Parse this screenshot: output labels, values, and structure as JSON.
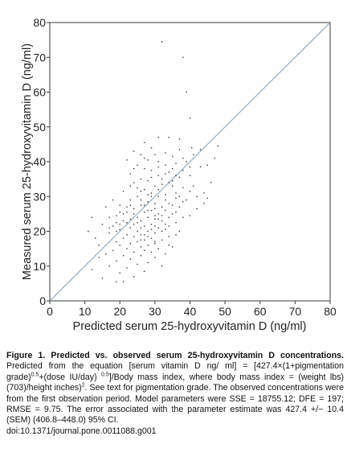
{
  "chart_data": {
    "type": "scatter",
    "title": "",
    "xlabel": "Predicted serum 25-hydroxyvitamin D (ng/ml)",
    "ylabel": "Measured serum 25-hydroxyvitamin D (ng/ml)",
    "xlim": [
      0,
      80
    ],
    "ylim": [
      0,
      80
    ],
    "xticks": [
      "0",
      "10",
      "20",
      "30",
      "40",
      "50",
      "60",
      "70",
      "80"
    ],
    "yticks": [
      "0",
      "10",
      "20",
      "30",
      "40",
      "50",
      "60",
      "70",
      "80"
    ],
    "grid": false,
    "legend": "none",
    "reference_line": {
      "type": "identity",
      "from": [
        0,
        0
      ],
      "to": [
        80,
        80
      ]
    },
    "point_color": "#333333",
    "line_color": "#7a9cc6",
    "points": [
      [
        32,
        74.5
      ],
      [
        39,
        60
      ],
      [
        38,
        70
      ],
      [
        40,
        52.5
      ],
      [
        34,
        47
      ],
      [
        31,
        47
      ],
      [
        37,
        46.5
      ],
      [
        27,
        45.5
      ],
      [
        40.5,
        44
      ],
      [
        29,
        44
      ],
      [
        43,
        43.5
      ],
      [
        37,
        43.5
      ],
      [
        24,
        43
      ],
      [
        33,
        42.5
      ],
      [
        26,
        42
      ],
      [
        30,
        42
      ],
      [
        35,
        41.5
      ],
      [
        38,
        41
      ],
      [
        22,
        40.5
      ],
      [
        28,
        40.5
      ],
      [
        31,
        40
      ],
      [
        36,
        39.5
      ],
      [
        25,
        39
      ],
      [
        33,
        39
      ],
      [
        40,
        38.5
      ],
      [
        27,
        38
      ],
      [
        29,
        37.5
      ],
      [
        34,
        37
      ],
      [
        23,
        36.5
      ],
      [
        31,
        36
      ],
      [
        37,
        35.5
      ],
      [
        26,
        35
      ],
      [
        28,
        34.5
      ],
      [
        24,
        34
      ],
      [
        32,
        33.5
      ],
      [
        30,
        33
      ],
      [
        35,
        33
      ],
      [
        38,
        32.5
      ],
      [
        27,
        32
      ],
      [
        21,
        31.5
      ],
      [
        29,
        31
      ],
      [
        33,
        30.5
      ],
      [
        25,
        30
      ],
      [
        31,
        30
      ],
      [
        36,
        29.5
      ],
      [
        39,
        29
      ],
      [
        23,
        29
      ],
      [
        28,
        28.5
      ],
      [
        30,
        28
      ],
      [
        34,
        28
      ],
      [
        20,
        27.5
      ],
      [
        26,
        27.5
      ],
      [
        32,
        27
      ],
      [
        37,
        27
      ],
      [
        24,
        26.5
      ],
      [
        29,
        26
      ],
      [
        33,
        26
      ],
      [
        22,
        25.5
      ],
      [
        27,
        25.5
      ],
      [
        31,
        25
      ],
      [
        35,
        25
      ],
      [
        40,
        24.5
      ],
      [
        19,
        24.5
      ],
      [
        25,
        24
      ],
      [
        28,
        24
      ],
      [
        30,
        23.5
      ],
      [
        21,
        23
      ],
      [
        26,
        23
      ],
      [
        32,
        23
      ],
      [
        36,
        22.5
      ],
      [
        24,
        22
      ],
      [
        29,
        22
      ],
      [
        18,
        21.5
      ],
      [
        27,
        21.5
      ],
      [
        31,
        21
      ],
      [
        23,
        21
      ],
      [
        33,
        20.5
      ],
      [
        20,
        20.5
      ],
      [
        25,
        20
      ],
      [
        28,
        20
      ],
      [
        30,
        19.5
      ],
      [
        17,
        19.5
      ],
      [
        22,
        19
      ],
      [
        26,
        19
      ],
      [
        34,
        18.5
      ],
      [
        24,
        18.5
      ],
      [
        29,
        18
      ],
      [
        21,
        18
      ],
      [
        27,
        17.5
      ],
      [
        32,
        17.5
      ],
      [
        19,
        17
      ],
      [
        25,
        17
      ],
      [
        30,
        16.5
      ],
      [
        23,
        16.5
      ],
      [
        28,
        16
      ],
      [
        20,
        16
      ],
      [
        35,
        15.5
      ],
      [
        26,
        15.5
      ],
      [
        22,
        15
      ],
      [
        31,
        15
      ],
      [
        18,
        14.5
      ],
      [
        27,
        14.5
      ],
      [
        24,
        14
      ],
      [
        29,
        14
      ],
      [
        33,
        13.5
      ],
      [
        16,
        13.5
      ],
      [
        21,
        13
      ],
      [
        26,
        13
      ],
      [
        14,
        12.5
      ],
      [
        30,
        12.5
      ],
      [
        23,
        12
      ],
      [
        19,
        11.5
      ],
      [
        28,
        11
      ],
      [
        25,
        10.5
      ],
      [
        17,
        10
      ],
      [
        32,
        10
      ],
      [
        22,
        9.5
      ],
      [
        12,
        9
      ],
      [
        27,
        8.5
      ],
      [
        20,
        8
      ],
      [
        24,
        7
      ],
      [
        15,
        6.5
      ],
      [
        21,
        5.5
      ],
      [
        19,
        5.5
      ],
      [
        13,
        18
      ],
      [
        15,
        22
      ],
      [
        12,
        24
      ],
      [
        16,
        27
      ],
      [
        11,
        20
      ],
      [
        14,
        16
      ],
      [
        17,
        24
      ],
      [
        18,
        29
      ],
      [
        36,
        36
      ],
      [
        38,
        24
      ],
      [
        41,
        33
      ],
      [
        42,
        30
      ],
      [
        44,
        31
      ],
      [
        45,
        29.5
      ],
      [
        34,
        34
      ],
      [
        33,
        29
      ],
      [
        36,
        19
      ],
      [
        31,
        32
      ],
      [
        29,
        30
      ],
      [
        27,
        27.5
      ],
      [
        26,
        29
      ],
      [
        30,
        26.5
      ],
      [
        28,
        30.5
      ],
      [
        32,
        35
      ],
      [
        35,
        38
      ],
      [
        23,
        33
      ],
      [
        22,
        27
      ],
      [
        21,
        25
      ],
      [
        20,
        22
      ],
      [
        19,
        20
      ],
      [
        24,
        25
      ],
      [
        23,
        23.5
      ],
      [
        25,
        22.5
      ],
      [
        26,
        21
      ],
      [
        27,
        19
      ],
      [
        28,
        18.5
      ],
      [
        29,
        20.5
      ],
      [
        30,
        21.5
      ],
      [
        31,
        23.5
      ],
      [
        32,
        24.5
      ],
      [
        33,
        22
      ],
      [
        34,
        24
      ],
      [
        35,
        27.5
      ],
      [
        36,
        31
      ],
      [
        37,
        30
      ],
      [
        38,
        37.5
      ],
      [
        39,
        40
      ],
      [
        40,
        36
      ],
      [
        41,
        42
      ],
      [
        42,
        26.5
      ],
      [
        43,
        38.5
      ],
      [
        44,
        28
      ],
      [
        45,
        39
      ],
      [
        46,
        34
      ],
      [
        47,
        41
      ],
      [
        48,
        44.5
      ],
      [
        37,
        20
      ],
      [
        34,
        16
      ],
      [
        30,
        17
      ],
      [
        26,
        17.5
      ],
      [
        22,
        22.5
      ],
      [
        20,
        25.5
      ],
      [
        24,
        38
      ],
      [
        27,
        41
      ],
      [
        29,
        35.5
      ],
      [
        31,
        38.5
      ],
      [
        33,
        36.5
      ],
      [
        35,
        34.5
      ],
      [
        25,
        32.5
      ],
      [
        28,
        26
      ],
      [
        30,
        24.5
      ],
      [
        32,
        20
      ],
      [
        34,
        21.5
      ],
      [
        36,
        25.5
      ],
      [
        38,
        28.5
      ],
      [
        40,
        31.5
      ],
      [
        19,
        22.5
      ],
      [
        17,
        21
      ],
      [
        23,
        27.5
      ],
      [
        26,
        31.5
      ]
    ]
  },
  "caption": {
    "title": "Figure 1. Predicted vs. observed serum 25-hydroxyvitamin D concentrations.",
    "part1": " Predicted from the equation [serum vitamin D ng/ ml] = [427.4×(1+pigmentation grade)",
    "sup1": "0.5",
    "part2": "+(dose IU/day) ",
    "sup2": "0.5",
    "part3": "]/Body mass index, where body mass index = (weight lbs)(703)/height inches)",
    "sup3": "2",
    "part4": ". See text for pigmentation grade. The observed concentrations were from the first observation period. Model parameters were SSE = 18755.12; DFE = 197; RMSE = 9.75. The error associated with the parameter estimate was 427.4 +/− 10.4 (SEM) (406.8–448.0) 95% CI.",
    "doi": "doi:10.1371/journal.pone.0011088.g001"
  }
}
